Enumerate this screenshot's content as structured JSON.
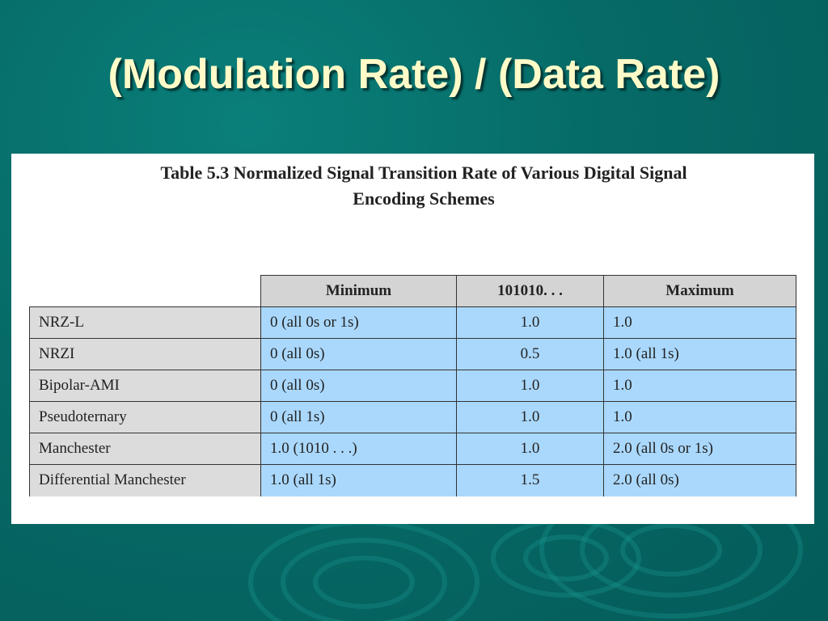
{
  "slide": {
    "title": "(Modulation Rate) / (Data Rate)"
  },
  "table": {
    "caption_line1": "Table 5.3  Normalized Signal Transition Rate of Various Digital Signal",
    "caption_line2": "Encoding Schemes",
    "headers": [
      "",
      "Minimum",
      "101010. . .",
      "Maximum"
    ],
    "rows": [
      [
        "NRZ-L",
        "0 (all 0s or 1s)",
        "1.0",
        "1.0"
      ],
      [
        "NRZI",
        "0 (all 0s)",
        "0.5",
        "1.0 (all 1s)"
      ],
      [
        "Bipolar-AMI",
        "0 (all 0s)",
        "1.0",
        "1.0"
      ],
      [
        "Pseudoternary",
        "0 (all 1s)",
        "1.0",
        "1.0"
      ],
      [
        "Manchester",
        "1.0 (1010 . . .)",
        "1.0",
        "2.0 (all 0s or 1s)"
      ],
      [
        "Differential Manchester",
        "1.0 (all 1s)",
        "1.5",
        "2.0 (all 0s)"
      ]
    ]
  },
  "colors": {
    "background": "#066a66",
    "title_text": "#fffbc8",
    "header_fill": "#d4d4d4",
    "row_label_fill": "#dcdcdc",
    "data_cell_fill": "#aad8fc"
  }
}
